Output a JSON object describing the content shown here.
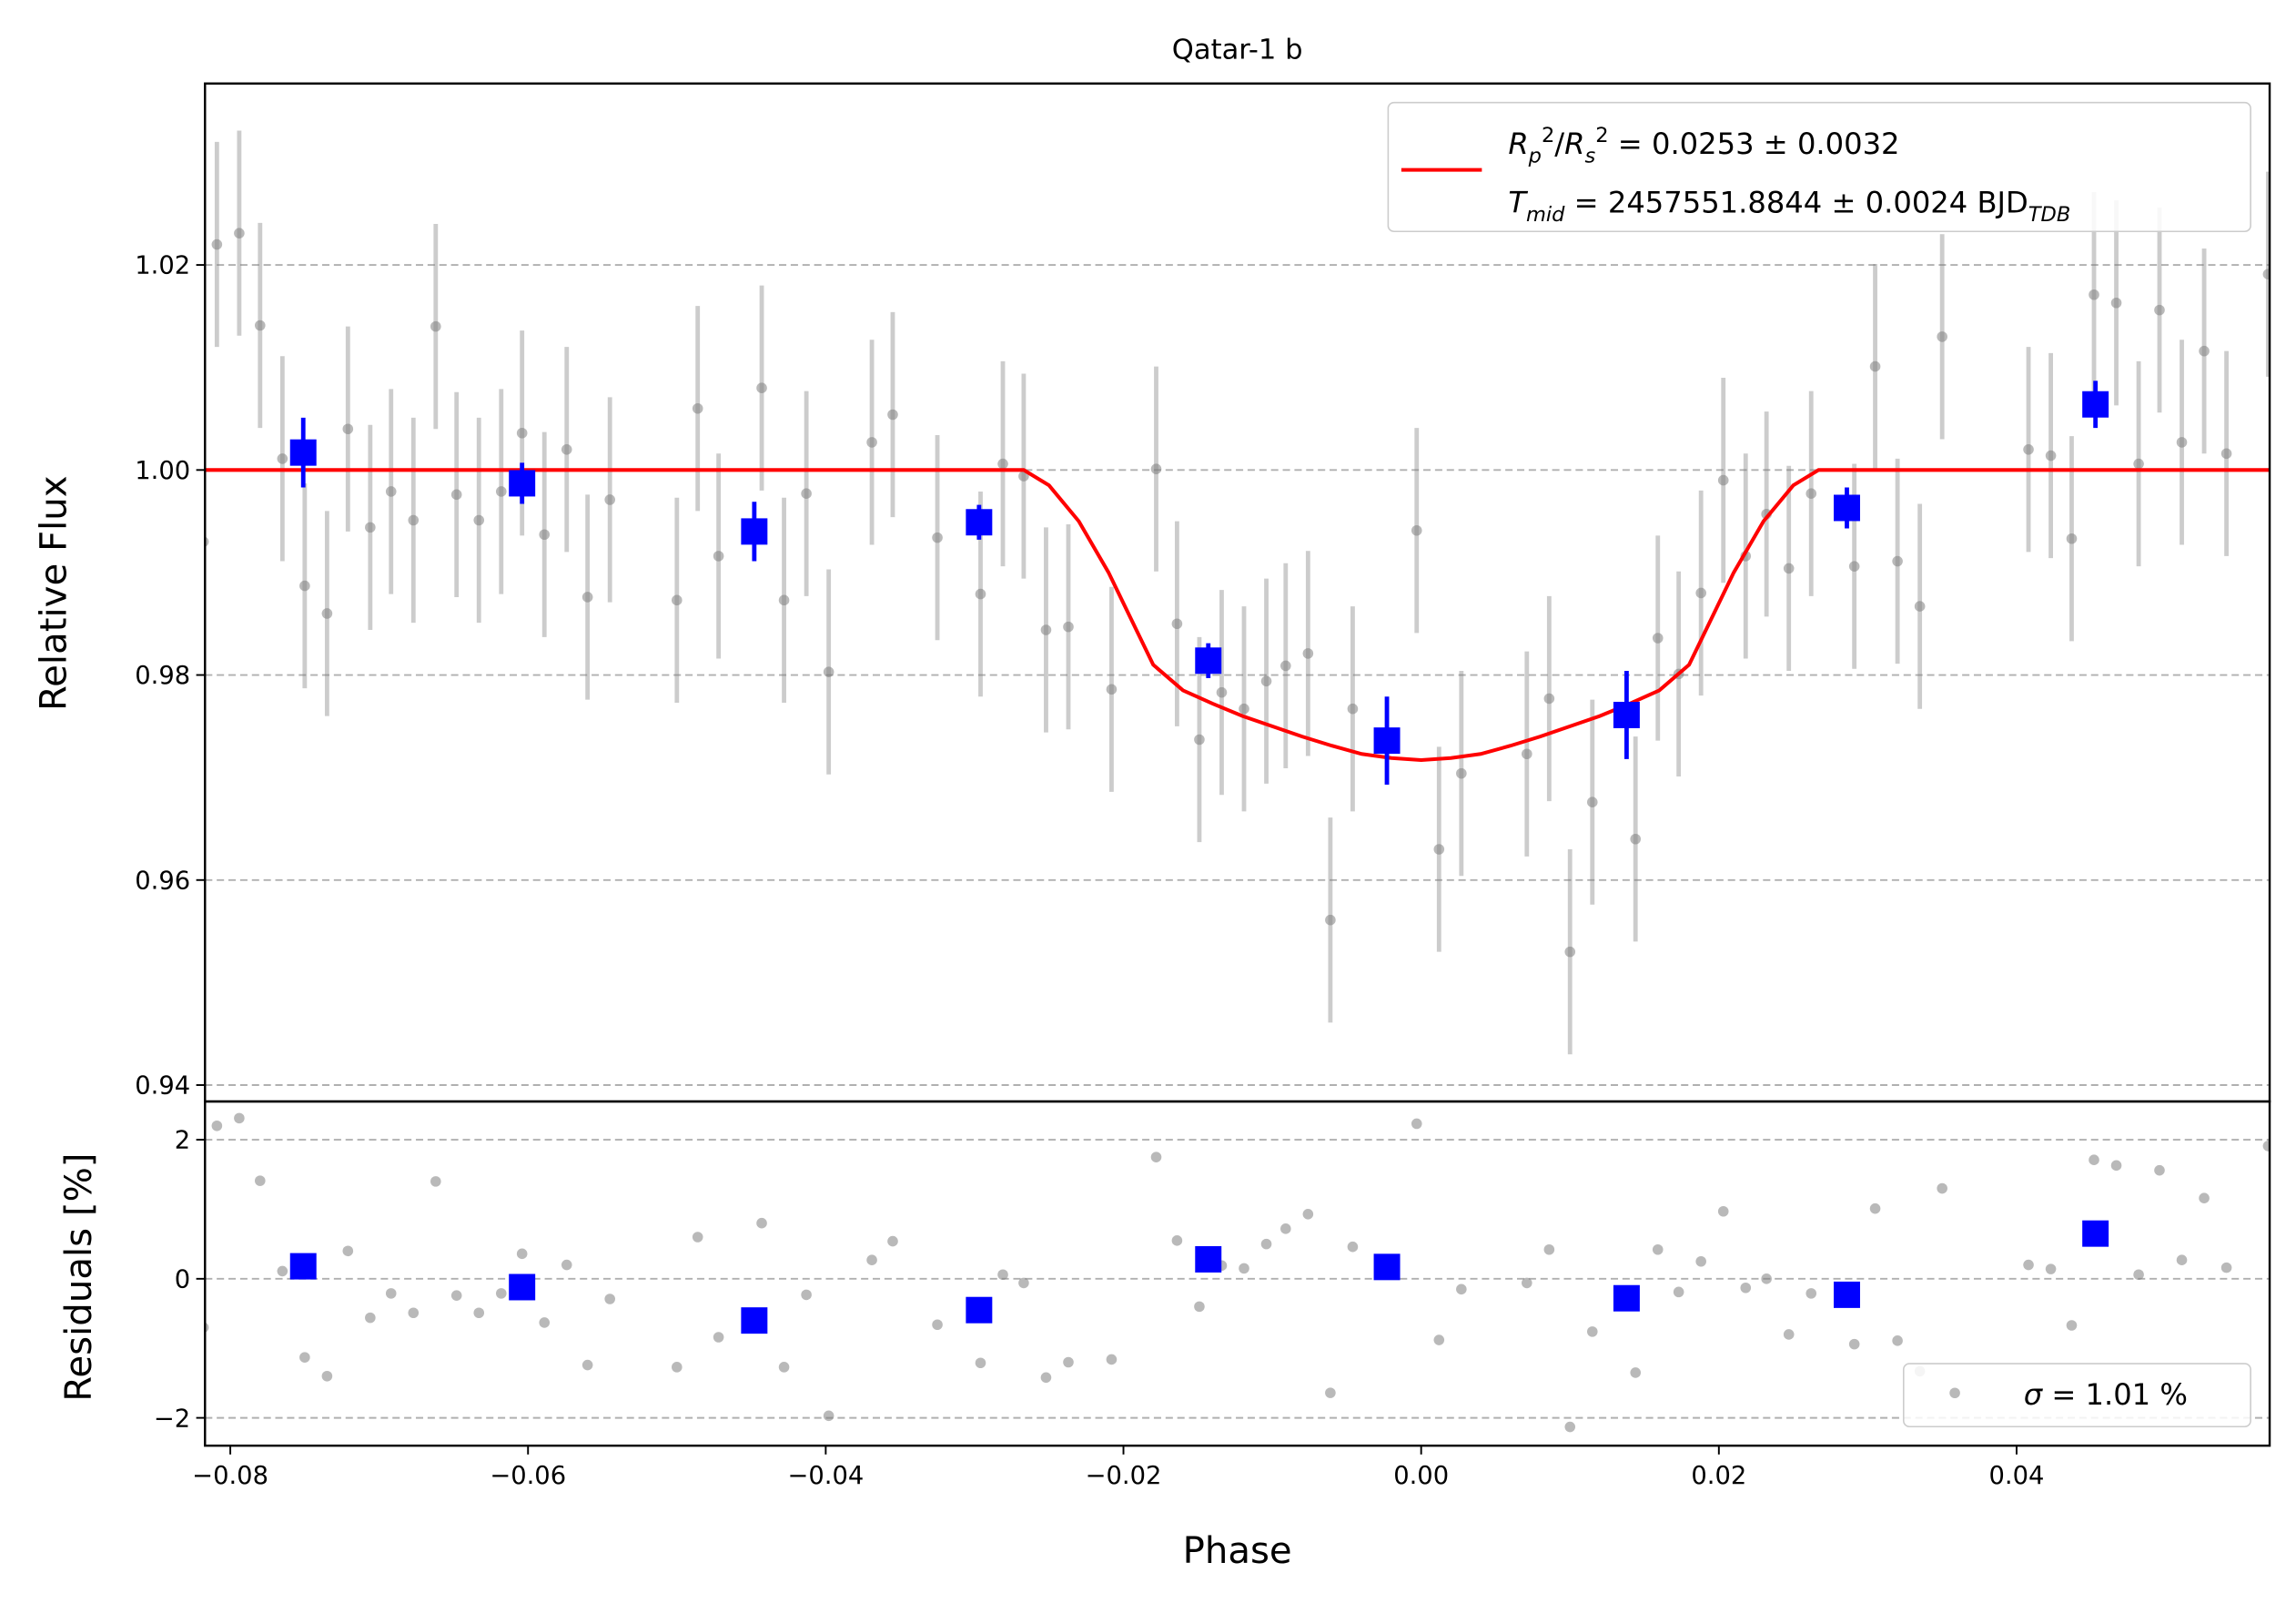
{
  "chart_data": [
    {
      "type": "scatter",
      "title": "Qatar-1 b",
      "y_label": "Relative Flux",
      "ylim": [
        0.9384,
        1.0377
      ],
      "yticks": [
        0.94,
        0.96,
        0.98,
        {
          "value": 1.0,
          "label": "1.00"
        },
        1.02
      ],
      "grid": true,
      "legend_position": "upper right",
      "data_points": {
        "color": "#808080",
        "yerr": 0.01,
        "x": [
          -0.0818,
          -0.0809,
          -0.0794,
          -0.078,
          -0.0765,
          -0.075,
          -0.0735,
          -0.0721,
          -0.0706,
          -0.0692,
          -0.0677,
          -0.0662,
          -0.0648,
          -0.0633,
          -0.0618,
          -0.0604,
          -0.0589,
          -0.0574,
          -0.056,
          -0.0545,
          -0.05,
          -0.0486,
          -0.0472,
          -0.0443,
          -0.0428,
          -0.0413,
          -0.0398,
          -0.0369,
          -0.0355,
          -0.0325,
          -0.0296,
          -0.0281,
          -0.0267,
          -0.0252,
          -0.0237,
          -0.0208,
          -0.0178,
          -0.0164,
          -0.0149,
          -0.0134,
          -0.0119,
          -0.0104,
          -0.0091,
          -0.0076,
          -0.0061,
          -0.0046,
          -0.0003,
          0.0012,
          0.0027,
          0.0071,
          0.0086,
          0.01,
          0.0115,
          0.0144,
          0.0159,
          0.0173,
          0.0188,
          0.0203,
          0.0218,
          0.0232,
          0.0247,
          0.0262,
          0.0291,
          0.0305,
          0.032,
          0.0335,
          0.035,
          0.0408,
          0.0423,
          0.0437,
          0.0452,
          0.0467,
          0.0482,
          0.0496,
          0.0511,
          0.0526,
          0.0541,
          0.0569
        ],
        "y": [
          0.993,
          1.022,
          1.0231,
          1.0141,
          1.0011,
          0.9887,
          0.986,
          1.004,
          0.9944,
          0.9979,
          0.9951,
          1.014,
          0.9976,
          0.9951,
          0.9979,
          1.0036,
          0.9937,
          1.002,
          0.9876,
          0.9971,
          0.9873,
          1.006,
          0.9916,
          1.008,
          0.9873,
          0.9977,
          0.9803,
          1.0027,
          1.0054,
          0.9934,
          0.9879,
          1.0006,
          0.9994,
          0.9844,
          0.9847,
          0.9786,
          1.0001,
          0.985,
          0.9737,
          0.9783,
          0.9767,
          0.9794,
          0.9809,
          0.9821,
          0.9561,
          0.9767,
          0.9941,
          0.963,
          0.9704,
          0.9723,
          0.9777,
          0.953,
          0.9676,
          0.964,
          0.9836,
          0.9801,
          0.988,
          0.999,
          0.9916,
          0.9957,
          0.9904,
          0.9977,
          0.9906,
          1.0101,
          0.9911,
          0.9867,
          1.013,
          1.002,
          1.0014,
          0.9933,
          1.0171,
          1.0163,
          1.0006,
          1.0156,
          1.0027,
          1.0116,
          1.0016,
          1.0191
        ]
      },
      "binned": {
        "color": "#0000ff",
        "x": [
          -0.0751,
          -0.0604,
          -0.0448,
          -0.0297,
          -0.0143,
          -0.0023,
          0.0138,
          0.0286,
          0.0453
        ],
        "y": [
          1.0017,
          0.9987,
          0.994,
          0.9949,
          0.9814,
          0.9736,
          0.9761,
          0.9963,
          1.0064
        ],
        "yerr": [
          0.0034,
          0.002,
          0.0029,
          0.0017,
          0.0017,
          0.0043,
          0.0043,
          0.002,
          0.0023
        ]
      },
      "model": {
        "color": "#ff0000",
        "label_lines": [
          [
            {
              "text": "R",
              "italic": true
            },
            {
              "text": "p",
              "italic": true,
              "baseline": "sub"
            },
            {
              "text": "2",
              "baseline": "super"
            },
            {
              "text": "/"
            },
            {
              "text": "R",
              "italic": true
            },
            {
              "text": "s",
              "italic": true,
              "baseline": "sub"
            },
            {
              "text": "2",
              "baseline": "super"
            },
            {
              "text": " = 0.0253 ± 0.0032"
            }
          ],
          [
            {
              "text": "T",
              "italic": true
            },
            {
              "text": "mid",
              "italic": true,
              "baseline": "sub"
            },
            {
              "text": " = 2457551.8844 ± 0.0024 BJD"
            },
            {
              "text": "TDB",
              "italic": true,
              "baseline": "sub"
            }
          ]
        ],
        "x": [
          -0.0817,
          -0.0267,
          -0.025,
          -0.023,
          -0.021,
          -0.019,
          -0.018,
          -0.016,
          -0.014,
          -0.012,
          -0.01,
          -0.008,
          -0.006,
          -0.004,
          -0.002,
          0,
          0.002,
          0.004,
          0.006,
          0.008,
          0.01,
          0.012,
          0.014,
          0.016,
          0.018,
          0.019,
          0.021,
          0.023,
          0.025,
          0.0267,
          0.057
        ],
        "y": [
          1,
          1,
          0.9985,
          0.995,
          0.99,
          0.984,
          0.981,
          0.9785,
          0.9772,
          0.976,
          0.975,
          0.974,
          0.9731,
          0.9723,
          0.9719,
          0.9717,
          0.9719,
          0.9723,
          0.9731,
          0.974,
          0.975,
          0.976,
          0.9772,
          0.9785,
          0.981,
          0.984,
          0.99,
          0.995,
          0.9985,
          1,
          1
        ]
      }
    },
    {
      "type": "scatter",
      "x_label": "Phase",
      "y_label": "Residuals [%]",
      "xlim": [
        -0.0817,
        0.057
      ],
      "xticks": [
        {
          "value": -0.08,
          "label": "−0.08"
        },
        {
          "value": -0.06,
          "label": "−0.06"
        },
        {
          "value": -0.04,
          "label": "−0.04"
        },
        {
          "value": -0.02,
          "label": "−0.02"
        },
        {
          "value": 0,
          "label": "0.00"
        },
        0.02,
        0.04
      ],
      "ylim": [
        -2.4,
        2.55
      ],
      "yticks": [
        {
          "value": -2,
          "label": "−2"
        },
        0,
        2
      ],
      "grid": true,
      "legend_position": "lower right",
      "legend_label": [
        {
          "text": "σ",
          "italic": true
        },
        {
          "text": " = 1.01 %"
        }
      ],
      "data_points": {
        "color": "#808080",
        "y": [
          -0.7,
          2.2,
          2.31,
          1.41,
          0.11,
          -1.13,
          -1.4,
          0.4,
          -0.56,
          -0.21,
          -0.49,
          1.4,
          -0.24,
          -0.49,
          -0.21,
          0.36,
          -0.63,
          0.2,
          -1.24,
          -0.29,
          -1.27,
          0.6,
          -0.84,
          0.8,
          -1.27,
          -0.23,
          -1.97,
          0.27,
          0.54,
          -0.66,
          -1.21,
          0.06,
          -0.06,
          -1.42,
          -1.2,
          -1.16,
          1.75,
          0.55,
          -0.4,
          0.19,
          0.15,
          0.5,
          0.72,
          0.93,
          -1.64,
          0.46,
          2.23,
          -0.88,
          -0.15,
          -0.06,
          0.42,
          -2.13,
          -0.76,
          -1.35,
          0.42,
          -0.19,
          0.25,
          0.97,
          -0.13,
          0.0,
          -0.8,
          -0.21,
          -0.94,
          1.01,
          -0.89,
          -1.33,
          1.3,
          0.2,
          0.14,
          -0.67,
          1.71,
          1.63,
          0.06,
          1.56,
          0.27,
          1.16,
          0.16,
          1.91
        ]
      },
      "binned": {
        "color": "#0000ff",
        "y": [
          0.18,
          -0.12,
          -0.6,
          -0.45,
          0.28,
          0.17,
          -0.28,
          -0.23,
          0.65
        ]
      }
    }
  ]
}
